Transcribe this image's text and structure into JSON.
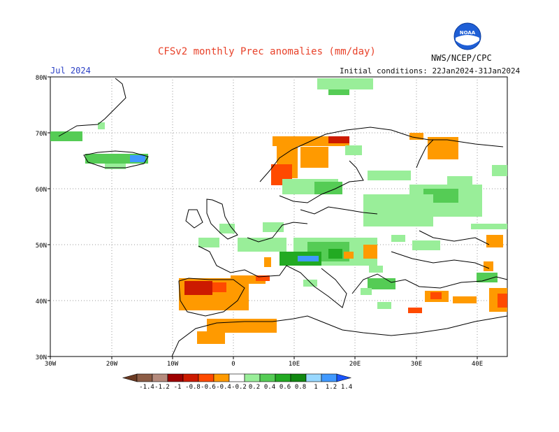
{
  "header": {
    "title": "CFSv2 monthly Prec anomalies (mm/day)",
    "month": "Jul 2024",
    "initial_conditions": "Initial conditions: 22Jan2024-31Jan2024",
    "agency": "NWS/NCEP/CPC",
    "logo_text": "NOAA"
  },
  "axes": {
    "lat_labels": [
      "80N",
      "70N",
      "60N",
      "50N",
      "40N",
      "30N"
    ],
    "lon_labels": [
      "30W",
      "20W",
      "10W",
      "0",
      "10E",
      "20E",
      "30E",
      "40E"
    ]
  },
  "colorbar": {
    "tick_labels": [
      "-1.4",
      "-1.2",
      "-1",
      "-0.8",
      "-0.6",
      "-0.4",
      "-0.2",
      "0.2",
      "0.4",
      "0.6",
      "0.8",
      "1",
      "1.2",
      "1.4"
    ],
    "colors": [
      "#6b3a22",
      "#8c5c45",
      "#b58b7d",
      "#9e0000",
      "#cc1a00",
      "#ff4a00",
      "#ff9a00",
      "#ffffff",
      "#99ee99",
      "#55cc55",
      "#22aa22",
      "#118811",
      "#99d8ff",
      "#4099ff",
      "#1a55ff"
    ]
  }
}
